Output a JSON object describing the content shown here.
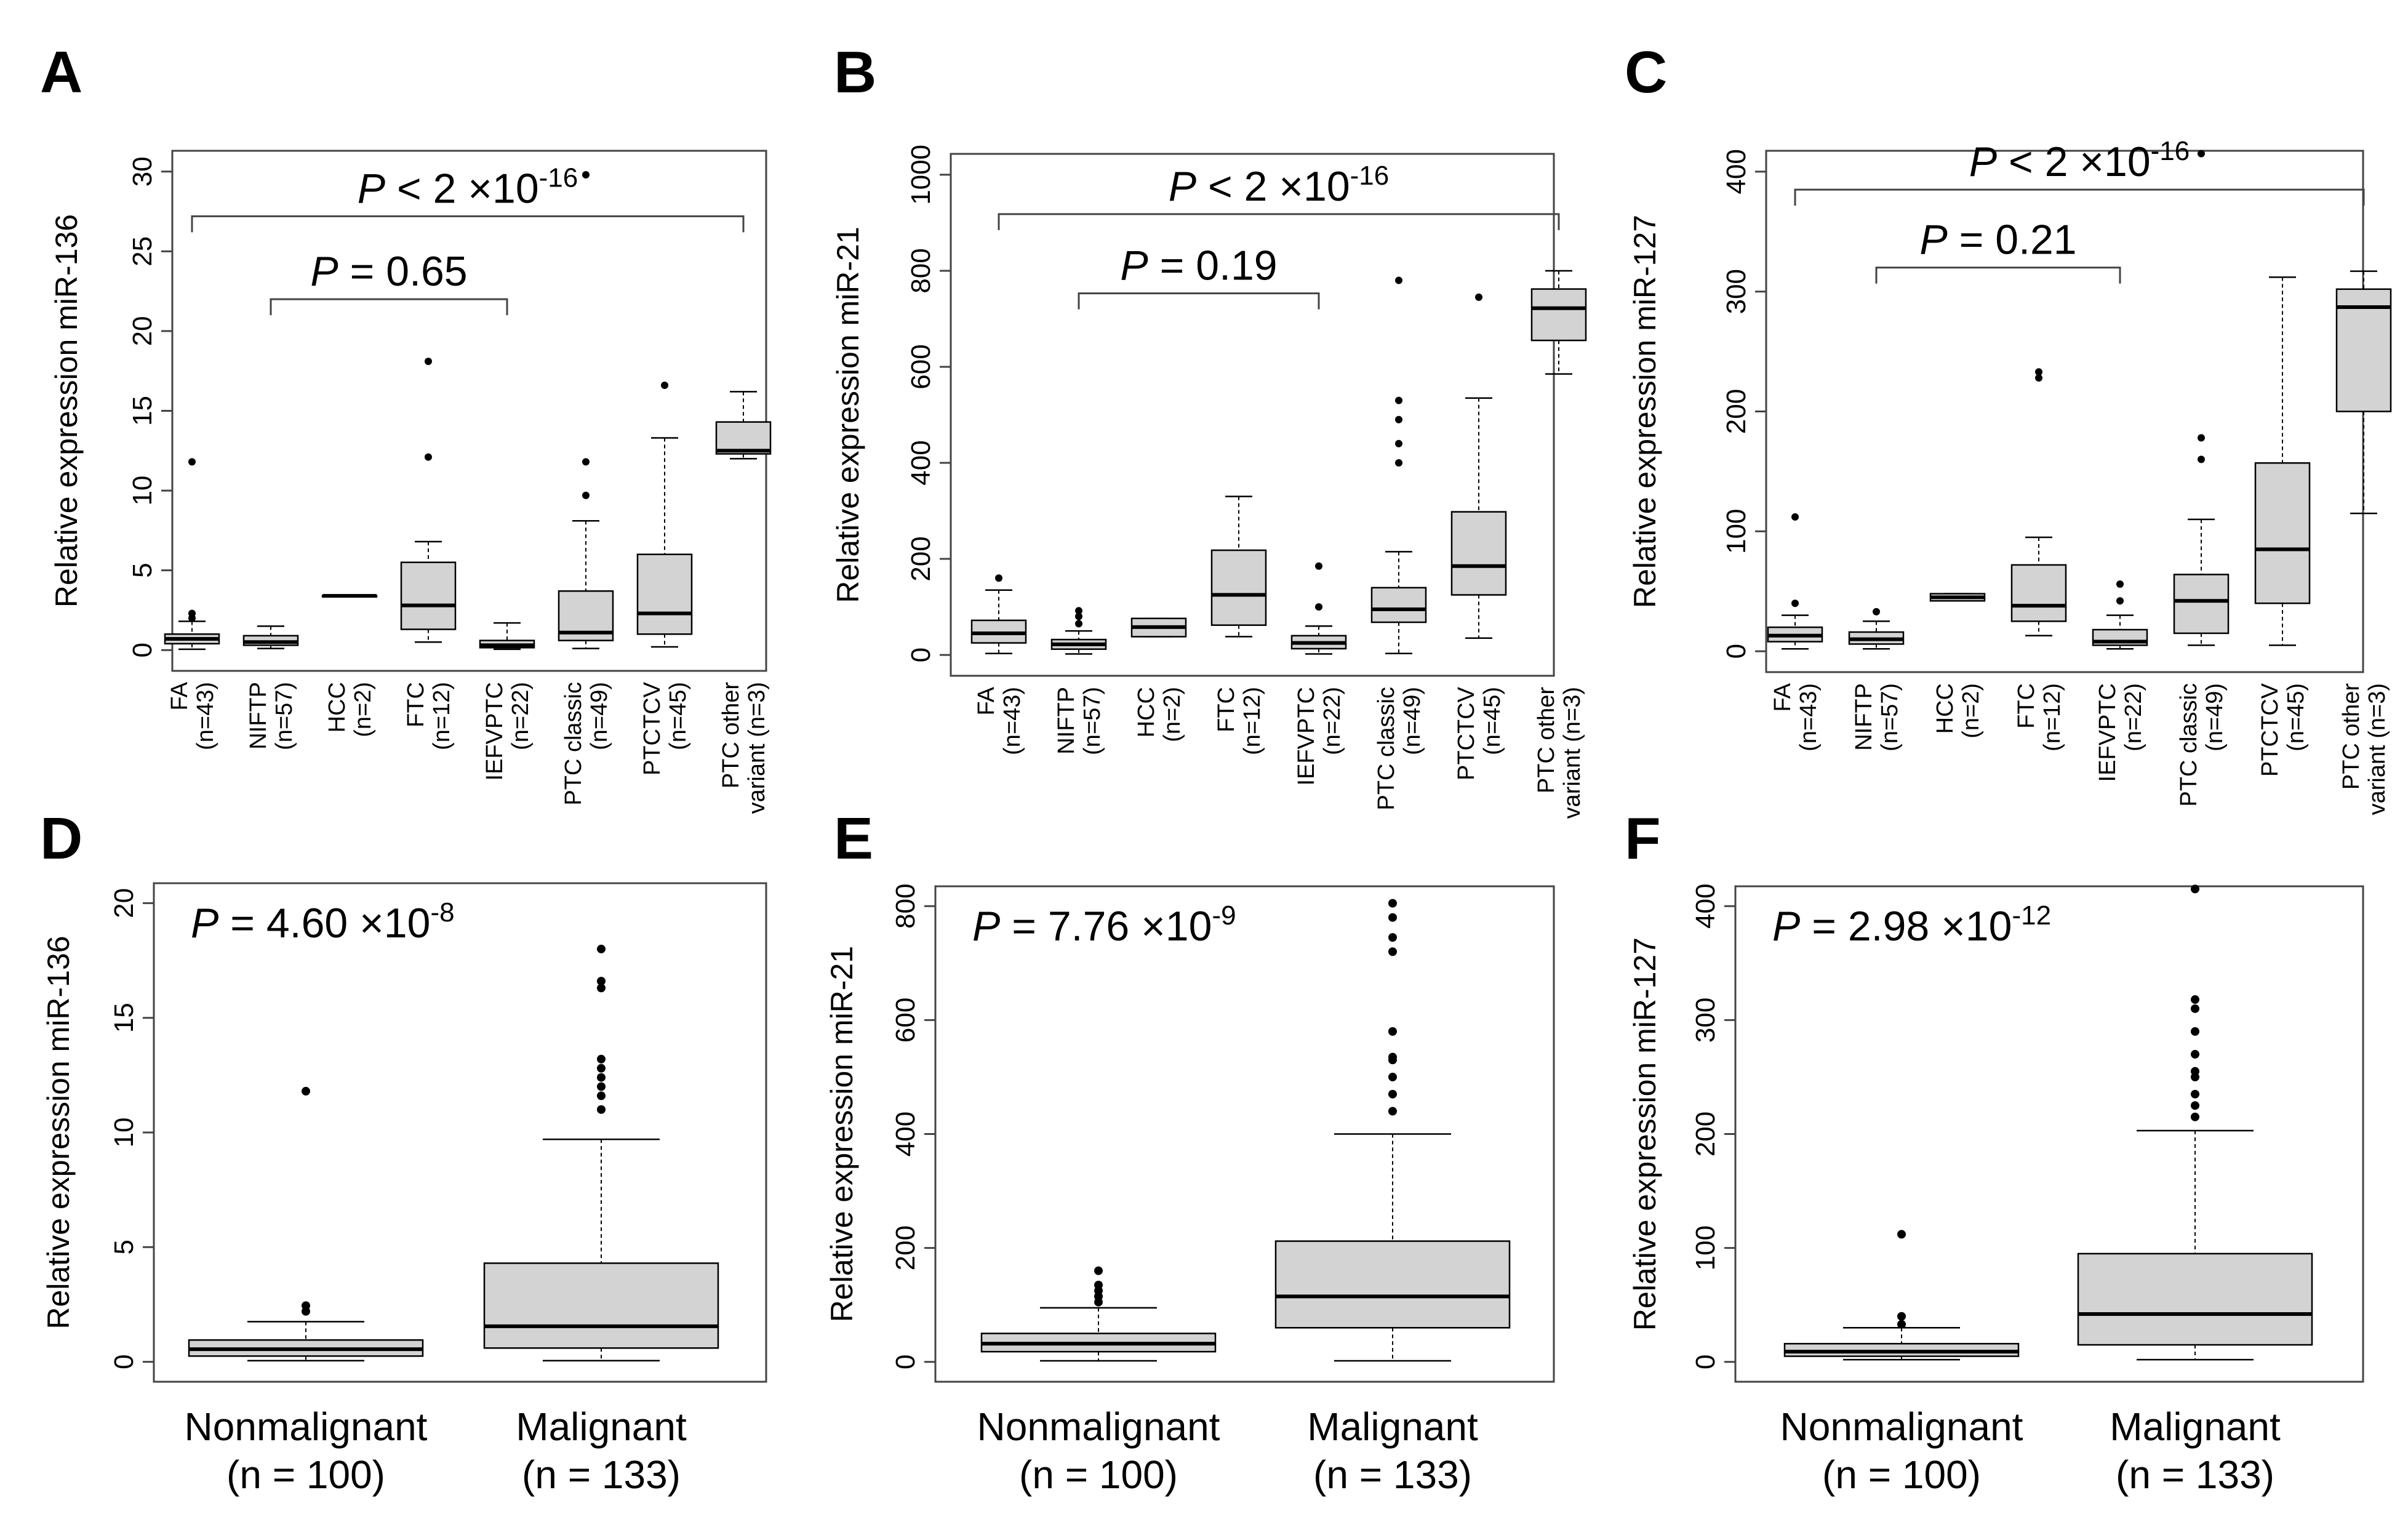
{
  "colors": {
    "box_fill": "#d3d3d3",
    "stroke": "#000000",
    "axis": "#444444",
    "outlier": "#000000"
  },
  "chart_data": [
    {
      "panel": "A",
      "type": "box",
      "ylabel": "Relative expression miR-136",
      "ylim": [
        0,
        30
      ],
      "yticks": [
        0,
        5,
        10,
        15,
        20,
        25,
        30
      ],
      "groups": [
        {
          "label": "FA",
          "n": "(n=43)",
          "min": 0.05,
          "q1": 0.4,
          "median": 0.7,
          "q3": 1.0,
          "max": 1.8,
          "outliers": [
            2.0,
            2.3,
            11.8
          ]
        },
        {
          "label": "NIFTP",
          "n": "(n=57)",
          "min": 0.1,
          "q1": 0.3,
          "median": 0.5,
          "q3": 0.9,
          "max": 1.5,
          "outliers": []
        },
        {
          "label": "HCC",
          "n": "(n=2)",
          "min": 3.4,
          "q1": 3.4,
          "median": 3.4,
          "q3": 3.4,
          "max": 3.4,
          "outliers": []
        },
        {
          "label": "FTC",
          "n": "(n=12)",
          "min": 0.5,
          "q1": 1.3,
          "median": 2.8,
          "q3": 5.5,
          "max": 6.8,
          "outliers": [
            12.1,
            18.1
          ]
        },
        {
          "label": "IEFVPTC",
          "n": "(n=22)",
          "min": 0.05,
          "q1": 0.15,
          "median": 0.3,
          "q3": 0.6,
          "max": 1.7,
          "outliers": []
        },
        {
          "label": "PTC classic",
          "n": "(n=49)",
          "min": 0.1,
          "q1": 0.6,
          "median": 1.1,
          "q3": 3.7,
          "max": 8.1,
          "outliers": [
            9.7,
            11.8,
            29.8
          ]
        },
        {
          "label": "PTCTCV",
          "n": "(n=45)",
          "min": 0.2,
          "q1": 1.0,
          "median": 2.3,
          "q3": 6.0,
          "max": 13.3,
          "outliers": [
            16.6
          ]
        },
        {
          "label": "PTC other",
          "n": "variant (n=3)",
          "min": 12.0,
          "q1": 12.3,
          "median": 12.5,
          "q3": 14.3,
          "max": 16.2,
          "outliers": []
        }
      ],
      "comparisons": [
        {
          "label": "P = 0.65",
          "p": "P",
          "text": " = 0.65",
          "sup": "",
          "from": 2,
          "to": 5,
          "y": 22
        },
        {
          "label": "P < 2 ×10-16",
          "p": "P",
          "text": " < 2 ×10",
          "sup": "-16",
          "from": 1,
          "to": 8,
          "y": 27.2
        }
      ]
    },
    {
      "panel": "B",
      "type": "box",
      "ylabel": "Relative expression miR-21",
      "ylim": [
        0,
        1000
      ],
      "yticks": [
        0,
        200,
        400,
        600,
        800,
        1000
      ],
      "groups": [
        {
          "label": "FA",
          "n": "(n=43)",
          "min": 3,
          "q1": 25,
          "median": 45,
          "q3": 72,
          "max": 135,
          "outliers": [
            160
          ]
        },
        {
          "label": "NIFTP",
          "n": "(n=57)",
          "min": 2,
          "q1": 12,
          "median": 22,
          "q3": 32,
          "max": 50,
          "outliers": [
            65,
            80,
            92
          ]
        },
        {
          "label": "HCC",
          "n": "(n=2)",
          "min": 38,
          "q1": 38,
          "median": 58,
          "q3": 76,
          "max": 76,
          "outliers": []
        },
        {
          "label": "FTC",
          "n": "(n=12)",
          "min": 38,
          "q1": 62,
          "median": 125,
          "q3": 218,
          "max": 330,
          "outliers": []
        },
        {
          "label": "IEFVPTC",
          "n": "(n=22)",
          "min": 2,
          "q1": 13,
          "median": 25,
          "q3": 40,
          "max": 60,
          "outliers": [
            100,
            185
          ]
        },
        {
          "label": "PTC classic",
          "n": "(n=49)",
          "min": 3,
          "q1": 68,
          "median": 95,
          "q3": 140,
          "max": 215,
          "outliers": [
            400,
            440,
            490,
            530,
            780
          ]
        },
        {
          "label": "PTCTCV",
          "n": "(n=45)",
          "min": 35,
          "q1": 125,
          "median": 185,
          "q3": 298,
          "max": 535,
          "outliers": [
            745
          ]
        },
        {
          "label": "PTC other",
          "n": "variant (n=3)",
          "min": 585,
          "q1": 655,
          "median": 722,
          "q3": 762,
          "max": 800,
          "outliers": []
        }
      ],
      "comparisons": [
        {
          "label": "P = 0.19",
          "p": "P",
          "text": " = 0.19",
          "sup": "",
          "from": 2,
          "to": 5,
          "y": 753
        },
        {
          "label": "P < 2 ×10-16",
          "p": "P",
          "text": " < 2 ×10",
          "sup": "-16",
          "from": 1,
          "to": 8,
          "y": 918
        }
      ]
    },
    {
      "panel": "C",
      "type": "box",
      "ylabel": "Relative expression miR-127",
      "ylim": [
        0,
        400
      ],
      "yticks": [
        0,
        100,
        200,
        300,
        400
      ],
      "groups": [
        {
          "label": "FA",
          "n": "(n=43)",
          "min": 2,
          "q1": 8,
          "median": 13,
          "q3": 20,
          "max": 30,
          "outliers": [
            40,
            112
          ]
        },
        {
          "label": "NIFTP",
          "n": "(n=57)",
          "min": 2,
          "q1": 6,
          "median": 10,
          "q3": 16,
          "max": 25,
          "outliers": [
            33
          ]
        },
        {
          "label": "HCC",
          "n": "(n=2)",
          "min": 42,
          "q1": 42,
          "median": 45,
          "q3": 48,
          "max": 48,
          "outliers": []
        },
        {
          "label": "FTC",
          "n": "(n=12)",
          "min": 13,
          "q1": 25,
          "median": 38,
          "q3": 72,
          "max": 95,
          "outliers": [
            228,
            233
          ]
        },
        {
          "label": "IEFVPTC",
          "n": "(n=22)",
          "min": 2,
          "q1": 5,
          "median": 8,
          "q3": 18,
          "max": 30,
          "outliers": [
            42,
            56
          ]
        },
        {
          "label": "PTC classic",
          "n": "(n=49)",
          "min": 5,
          "q1": 15,
          "median": 42,
          "q3": 64,
          "max": 110,
          "outliers": [
            160,
            178,
            415
          ]
        },
        {
          "label": "PTCTCV",
          "n": "(n=45)",
          "min": 5,
          "q1": 40,
          "median": 85,
          "q3": 157,
          "max": 312,
          "outliers": []
        },
        {
          "label": "PTC other",
          "n": "variant (n=3)",
          "min": 115,
          "q1": 200,
          "median": 287,
          "q3": 302,
          "max": 317,
          "outliers": []
        }
      ],
      "comparisons": [
        {
          "label": "P = 0.21",
          "p": "P",
          "text": " = 0.21",
          "sup": "",
          "from": 2,
          "to": 5,
          "y": 320
        },
        {
          "label": "P < 2 ×10-16",
          "p": "P",
          "text": " < 2 ×10",
          "sup": "-16",
          "from": 1,
          "to": 8,
          "y": 385
        }
      ]
    },
    {
      "panel": "D",
      "type": "box",
      "ylabel": "Relative expression miR-136",
      "ylim": [
        0,
        20
      ],
      "yticks": [
        0,
        5,
        10,
        15,
        20
      ],
      "pvalue": {
        "label": "P = 4.60 ×10-8",
        "p": "P",
        "text": " = 4.60 ×10",
        "sup": "-8"
      },
      "groups": [
        {
          "label": "Nonmalignant",
          "n": "(n = 100)",
          "min": 0.05,
          "q1": 0.25,
          "median": 0.55,
          "q3": 0.95,
          "max": 1.75,
          "outliers": [
            2.2,
            2.45,
            11.8
          ]
        },
        {
          "label": "Malignant",
          "n": "(n = 133)",
          "min": 0.05,
          "q1": 0.6,
          "median": 1.55,
          "q3": 4.3,
          "max": 9.7,
          "outliers": [
            11.0,
            11.6,
            12.0,
            12.4,
            12.8,
            13.2,
            16.3,
            16.6,
            18.0
          ]
        }
      ]
    },
    {
      "panel": "E",
      "type": "box",
      "ylabel": "Relative expression miR-21",
      "ylim": [
        0,
        800
      ],
      "yticks": [
        0,
        200,
        400,
        600,
        800
      ],
      "pvalue": {
        "label": "P = 7.76 ×10-9",
        "p": "P",
        "text": " = 7.76 ×10",
        "sup": "-9"
      },
      "groups": [
        {
          "label": "Nonmalignant",
          "n": "(n = 100)",
          "min": 2,
          "q1": 18,
          "median": 32,
          "q3": 50,
          "max": 95,
          "outliers": [
            105,
            115,
            125,
            135,
            160
          ]
        },
        {
          "label": "Malignant",
          "n": "(n = 133)",
          "min": 2,
          "q1": 60,
          "median": 115,
          "q3": 212,
          "max": 400,
          "outliers": [
            440,
            470,
            500,
            530,
            535,
            580,
            720,
            745,
            780,
            805
          ]
        }
      ]
    },
    {
      "panel": "F",
      "type": "box",
      "ylabel": "Relative expression miR-127",
      "ylim": [
        0,
        400
      ],
      "yticks": [
        0,
        100,
        200,
        300,
        400
      ],
      "pvalue": {
        "label": "P = 2.98 ×10-12",
        "p": "P",
        "text": " = 2.98 ×10",
        "sup": "-12"
      },
      "groups": [
        {
          "label": "Nonmalignant",
          "n": "(n = 100)",
          "min": 2,
          "q1": 5,
          "median": 9,
          "q3": 16,
          "max": 30,
          "outliers": [
            33,
            40,
            112
          ]
        },
        {
          "label": "Malignant",
          "n": "(n = 133)",
          "min": 2,
          "q1": 15,
          "median": 42,
          "q3": 95,
          "max": 203,
          "outliers": [
            215,
            225,
            235,
            250,
            255,
            270,
            290,
            310,
            318,
            415
          ]
        }
      ]
    }
  ]
}
